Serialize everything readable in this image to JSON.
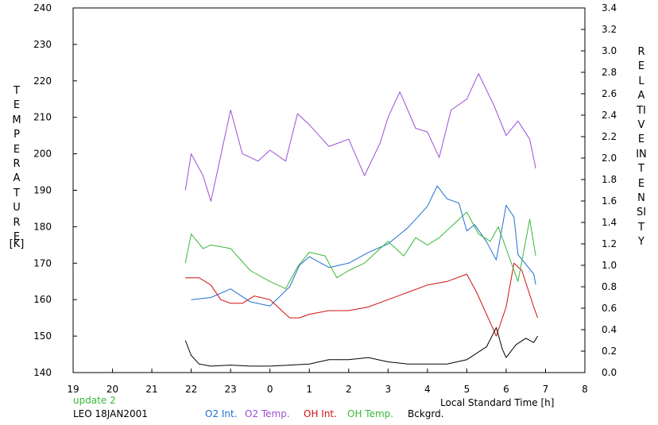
{
  "chart_data": {
    "type": "line",
    "left_axis_label": "TEMPERATURE",
    "left_axis_unit": "[K]",
    "right_axis_label": "RELATIVE INTENSITY",
    "xlabel": "Local Standard Time [h]",
    "x_ticks": [
      "19",
      "20",
      "21",
      "22",
      "23",
      "0",
      "1",
      "2",
      "3",
      "4",
      "5",
      "6",
      "7",
      "8"
    ],
    "y_left_ticks": [
      "140",
      "150",
      "160",
      "170",
      "180",
      "190",
      "200",
      "210",
      "220",
      "230",
      "240"
    ],
    "y_right_ticks": [
      "0.0",
      "0.2",
      "0.4",
      "0.6",
      "0.8",
      "1.0",
      "1.2",
      "1.4",
      "1.6",
      "1.8",
      "2.0",
      "2.2",
      "2.4",
      "2.6",
      "2.8",
      "3.0",
      "3.2",
      "3.4"
    ],
    "xlim": [
      19,
      32
    ],
    "ylim_left": [
      140,
      240
    ],
    "ylim_right": [
      0.0,
      3.4
    ],
    "grid": false,
    "status_text": "update 2",
    "station_date": "LEO 18JAN2001",
    "series": [
      {
        "name": "O2 Int.",
        "color": "#1f6fd0",
        "axis": "right",
        "points": [
          [
            22.0,
            0.68
          ],
          [
            22.5,
            0.7
          ],
          [
            23.0,
            0.78
          ],
          [
            23.5,
            0.66
          ],
          [
            24.0,
            0.62
          ],
          [
            24.5,
            0.8
          ],
          [
            24.75,
            1.0
          ],
          [
            25.0,
            1.08
          ],
          [
            25.5,
            0.98
          ],
          [
            26.0,
            1.02
          ],
          [
            26.5,
            1.12
          ],
          [
            27.0,
            1.2
          ],
          [
            27.5,
            1.35
          ],
          [
            28.0,
            1.55
          ],
          [
            28.25,
            1.74
          ],
          [
            28.5,
            1.62
          ],
          [
            28.8,
            1.58
          ],
          [
            29.0,
            1.32
          ],
          [
            29.2,
            1.38
          ],
          [
            29.5,
            1.22
          ],
          [
            29.75,
            1.05
          ],
          [
            30.0,
            1.56
          ],
          [
            30.2,
            1.45
          ],
          [
            30.3,
            1.1
          ],
          [
            30.7,
            0.92
          ],
          [
            30.75,
            0.82
          ]
        ]
      },
      {
        "name": "O2 Temp.",
        "color": "#9a4fd6",
        "axis": "left",
        "points": [
          [
            21.85,
            190
          ],
          [
            22.0,
            200
          ],
          [
            22.3,
            194
          ],
          [
            22.5,
            187
          ],
          [
            23.0,
            212
          ],
          [
            23.3,
            200
          ],
          [
            23.7,
            198
          ],
          [
            24.0,
            201
          ],
          [
            24.4,
            198
          ],
          [
            24.7,
            211
          ],
          [
            25.0,
            208
          ],
          [
            25.5,
            202
          ],
          [
            26.0,
            204
          ],
          [
            26.4,
            194
          ],
          [
            26.8,
            203
          ],
          [
            27.0,
            210
          ],
          [
            27.3,
            217
          ],
          [
            27.7,
            207
          ],
          [
            28.0,
            206
          ],
          [
            28.3,
            199
          ],
          [
            28.6,
            212
          ],
          [
            29.0,
            215
          ],
          [
            29.3,
            222
          ],
          [
            29.7,
            213
          ],
          [
            30.0,
            205
          ],
          [
            30.3,
            209
          ],
          [
            30.6,
            204
          ],
          [
            30.75,
            196
          ]
        ]
      },
      {
        "name": "OH Int.",
        "color": "#d01010",
        "axis": "left",
        "points": [
          [
            21.85,
            166
          ],
          [
            22.2,
            166
          ],
          [
            22.5,
            164
          ],
          [
            22.75,
            160
          ],
          [
            23.0,
            159
          ],
          [
            23.3,
            159
          ],
          [
            23.6,
            161
          ],
          [
            24.0,
            160
          ],
          [
            24.3,
            157
          ],
          [
            24.5,
            155
          ],
          [
            24.75,
            155
          ],
          [
            25.0,
            156
          ],
          [
            25.5,
            157
          ],
          [
            26.0,
            157
          ],
          [
            26.5,
            158
          ],
          [
            27.0,
            160
          ],
          [
            27.5,
            162
          ],
          [
            28.0,
            164
          ],
          [
            28.5,
            165
          ],
          [
            29.0,
            167
          ],
          [
            29.25,
            162
          ],
          [
            29.75,
            150
          ],
          [
            30.0,
            158
          ],
          [
            30.2,
            170
          ],
          [
            30.4,
            168
          ],
          [
            30.7,
            158
          ],
          [
            30.8,
            155
          ]
        ]
      },
      {
        "name": "OH Temp.",
        "color": "#38b838",
        "axis": "left",
        "points": [
          [
            21.85,
            170
          ],
          [
            22.0,
            178
          ],
          [
            22.3,
            174
          ],
          [
            22.5,
            175
          ],
          [
            23.0,
            174
          ],
          [
            23.5,
            168
          ],
          [
            24.0,
            165
          ],
          [
            24.4,
            163
          ],
          [
            24.7,
            169
          ],
          [
            25.0,
            173
          ],
          [
            25.4,
            172
          ],
          [
            25.7,
            166
          ],
          [
            26.0,
            168
          ],
          [
            26.4,
            170
          ],
          [
            26.8,
            174
          ],
          [
            27.0,
            176
          ],
          [
            27.4,
            172
          ],
          [
            27.7,
            177
          ],
          [
            28.0,
            175
          ],
          [
            28.3,
            177
          ],
          [
            28.7,
            181
          ],
          [
            29.0,
            184
          ],
          [
            29.3,
            178
          ],
          [
            29.6,
            176
          ],
          [
            29.8,
            180
          ],
          [
            30.0,
            174
          ],
          [
            30.3,
            165
          ],
          [
            30.6,
            182
          ],
          [
            30.75,
            172
          ]
        ]
      },
      {
        "name": "Bckgrd.",
        "color": "#000000",
        "axis": "right",
        "points": [
          [
            21.85,
            0.3
          ],
          [
            22.0,
            0.16
          ],
          [
            22.2,
            0.08
          ],
          [
            22.5,
            0.06
          ],
          [
            23.0,
            0.07
          ],
          [
            23.5,
            0.06
          ],
          [
            24.0,
            0.06
          ],
          [
            24.5,
            0.07
          ],
          [
            25.0,
            0.08
          ],
          [
            25.5,
            0.12
          ],
          [
            26.0,
            0.12
          ],
          [
            26.5,
            0.14
          ],
          [
            27.0,
            0.1
          ],
          [
            27.5,
            0.08
          ],
          [
            28.0,
            0.08
          ],
          [
            28.5,
            0.08
          ],
          [
            29.0,
            0.12
          ],
          [
            29.25,
            0.18
          ],
          [
            29.5,
            0.24
          ],
          [
            29.75,
            0.42
          ],
          [
            29.9,
            0.22
          ],
          [
            30.0,
            0.14
          ],
          [
            30.25,
            0.26
          ],
          [
            30.5,
            0.32
          ],
          [
            30.7,
            0.28
          ],
          [
            30.8,
            0.34
          ]
        ]
      }
    ]
  }
}
